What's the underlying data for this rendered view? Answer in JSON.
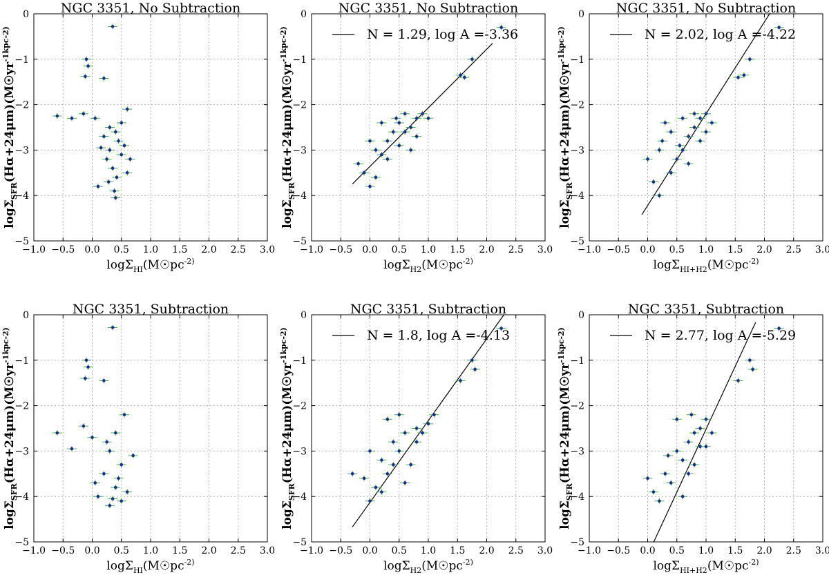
{
  "figure": {
    "rows": 2,
    "cols": 3
  },
  "chart_data": [
    {
      "type": "scatter",
      "title": "NGC 3351, No Subtraction",
      "xlabel": "logΣ_HI(M☉pc^-2)",
      "ylabel": "logΣ_SFR(Hα+24μm)(M☉yr^-1kpc^-2)",
      "xlim": [
        -1.0,
        3.0
      ],
      "ylim": [
        -5,
        0
      ],
      "x_ticks": [
        "−1.0",
        "−0.5",
        "0.0",
        "0.5",
        "1.0",
        "1.5",
        "2.0",
        "2.5",
        "3.0"
      ],
      "y_ticks": [
        "−5",
        "−4",
        "−3",
        "−2",
        "−1",
        "0"
      ],
      "grid": true,
      "legend": null,
      "fit": null,
      "points": [
        [
          0.35,
          -0.28
        ],
        [
          -0.1,
          -1.0
        ],
        [
          -0.07,
          -1.15
        ],
        [
          -0.12,
          -1.38
        ],
        [
          0.2,
          -1.42
        ],
        [
          -0.6,
          -2.25
        ],
        [
          -0.35,
          -2.3
        ],
        [
          -0.15,
          -2.2
        ],
        [
          0.6,
          -2.1
        ],
        [
          0.05,
          -2.3
        ],
        [
          0.3,
          -2.5
        ],
        [
          0.4,
          -2.6
        ],
        [
          0.45,
          -2.8
        ],
        [
          0.3,
          -3.0
        ],
        [
          0.5,
          -3.1
        ],
        [
          0.25,
          -3.2
        ],
        [
          0.55,
          -2.9
        ],
        [
          0.35,
          -3.4
        ],
        [
          0.42,
          -3.6
        ],
        [
          0.38,
          -3.9
        ],
        [
          0.4,
          -4.05
        ],
        [
          0.1,
          -3.8
        ],
        [
          0.65,
          -3.2
        ],
        [
          0.2,
          -2.7
        ],
        [
          0.5,
          -2.4
        ],
        [
          0.15,
          -2.95
        ],
        [
          0.6,
          -3.5
        ],
        [
          0.28,
          -3.7
        ]
      ]
    },
    {
      "type": "scatter",
      "title": "NGC 3351, No Subtraction",
      "xlabel": "logΣ_H2(M☉pc^-2)",
      "ylabel": "logΣ_SFR(Hα+24μm)(M☉yr^-1kpc^-2)",
      "xlim": [
        -1.0,
        3.0
      ],
      "ylim": [
        -5,
        0
      ],
      "x_ticks": [
        "−1.0",
        "−0.5",
        "0.0",
        "0.5",
        "1.0",
        "1.5",
        "2.0",
        "2.5",
        "3.0"
      ],
      "y_ticks": [
        "−5",
        "−4",
        "−3",
        "−2",
        "−1",
        "0"
      ],
      "grid": true,
      "legend": "N = 1.29, log A =-3.36",
      "fit": {
        "N": 1.29,
        "logA": -3.36,
        "x_range": [
          -0.3,
          2.1
        ]
      },
      "points": [
        [
          2.25,
          -0.3
        ],
        [
          1.75,
          -1.0
        ],
        [
          1.55,
          -1.35
        ],
        [
          1.62,
          -1.4
        ],
        [
          -0.2,
          -3.3
        ],
        [
          -0.1,
          -3.5
        ],
        [
          0.0,
          -3.8
        ],
        [
          0.1,
          -3.6
        ],
        [
          0.2,
          -3.1
        ],
        [
          0.3,
          -2.8
        ],
        [
          0.4,
          -2.6
        ],
        [
          0.5,
          -2.4
        ],
        [
          0.6,
          -2.2
        ],
        [
          0.7,
          -2.5
        ],
        [
          0.8,
          -2.3
        ],
        [
          0.9,
          -2.2
        ],
        [
          1.0,
          -2.3
        ],
        [
          0.2,
          -2.4
        ],
        [
          0.0,
          -2.8
        ],
        [
          0.5,
          -2.9
        ],
        [
          0.7,
          -3.0
        ],
        [
          0.3,
          -3.2
        ],
        [
          0.8,
          -2.7
        ],
        [
          0.6,
          -2.6
        ],
        [
          0.1,
          -3.0
        ],
        [
          0.45,
          -2.3
        ]
      ]
    },
    {
      "type": "scatter",
      "title": "NGC 3351, No Subtraction",
      "xlabel": "logΣ_HI+H2(M☉pc^-2)",
      "ylabel": "logΣ_SFR(Hα+24μm)(M☉yr^-1kpc^-2)",
      "xlim": [
        -1.0,
        3.0
      ],
      "ylim": [
        -5,
        0
      ],
      "x_ticks": [
        "−1.0",
        "−0.5",
        "0.0",
        "0.5",
        "1.0",
        "1.5",
        "2.0",
        "2.5",
        "3.0"
      ],
      "y_ticks": [
        "−5",
        "−4",
        "−3",
        "−2",
        "−1",
        "0"
      ],
      "grid": true,
      "legend": "N = 2.02, log A =-4.22",
      "fit": {
        "N": 2.02,
        "logA": -4.22,
        "x_range": [
          -0.1,
          2.1
        ]
      },
      "points": [
        [
          2.25,
          -0.3
        ],
        [
          1.75,
          -1.0
        ],
        [
          1.55,
          -1.4
        ],
        [
          1.65,
          -1.35
        ],
        [
          0.0,
          -3.2
        ],
        [
          0.2,
          -3.0
        ],
        [
          0.1,
          -3.7
        ],
        [
          0.2,
          -4.0
        ],
        [
          0.4,
          -3.5
        ],
        [
          0.5,
          -3.2
        ],
        [
          0.6,
          -3.0
        ],
        [
          0.7,
          -2.7
        ],
        [
          0.8,
          -2.5
        ],
        [
          0.9,
          -2.3
        ],
        [
          1.0,
          -2.2
        ],
        [
          1.1,
          -2.4
        ],
        [
          0.6,
          -2.3
        ],
        [
          0.4,
          -2.6
        ],
        [
          0.3,
          -2.4
        ],
        [
          0.7,
          -3.3
        ],
        [
          0.9,
          -2.8
        ],
        [
          1.0,
          -2.6
        ],
        [
          0.55,
          -2.9
        ],
        [
          0.8,
          -2.2
        ],
        [
          0.25,
          -2.8
        ]
      ]
    },
    {
      "type": "scatter",
      "title": "NGC 3351, Subtraction",
      "xlabel": "logΣ_HI(M☉pc^-2)",
      "ylabel": "logΣ_SFR(Hα+24μm)(M☉yr^-1kpc^-2)",
      "xlim": [
        -1.0,
        3.0
      ],
      "ylim": [
        -5,
        0
      ],
      "x_ticks": [
        "−1.0",
        "−0.5",
        "0.0",
        "0.5",
        "1.0",
        "1.5",
        "2.0",
        "2.5",
        "3.0"
      ],
      "y_ticks": [
        "−5",
        "−4",
        "−3",
        "−2",
        "−1",
        "0"
      ],
      "grid": true,
      "legend": null,
      "fit": null,
      "points": [
        [
          0.35,
          -0.28
        ],
        [
          -0.1,
          -1.0
        ],
        [
          -0.07,
          -1.15
        ],
        [
          -0.12,
          -1.4
        ],
        [
          0.2,
          -1.45
        ],
        [
          -0.6,
          -2.6
        ],
        [
          -0.35,
          -2.95
        ],
        [
          -0.15,
          -2.45
        ],
        [
          0.55,
          -2.2
        ],
        [
          0.0,
          -2.7
        ],
        [
          0.3,
          -3.0
        ],
        [
          0.4,
          -2.6
        ],
        [
          0.5,
          -3.3
        ],
        [
          0.2,
          -3.5
        ],
        [
          0.4,
          -3.8
        ],
        [
          0.1,
          -4.0
        ],
        [
          0.5,
          -4.1
        ],
        [
          0.3,
          -4.2
        ],
        [
          0.6,
          -3.9
        ],
        [
          0.45,
          -3.6
        ],
        [
          0.25,
          -2.8
        ],
        [
          0.7,
          -3.1
        ],
        [
          0.05,
          -3.7
        ],
        [
          0.35,
          -4.05
        ]
      ]
    },
    {
      "type": "scatter",
      "title": "NGC 3351, Subtraction",
      "xlabel": "logΣ_H2(M☉pc^-2)",
      "ylabel": "logΣ_SFR(Hα+24μm)(M☉yr^-1kpc^-2)",
      "xlim": [
        -1.0,
        3.0
      ],
      "ylim": [
        -5,
        0
      ],
      "x_ticks": [
        "−1.0",
        "−0.5",
        "0.0",
        "0.5",
        "1.0",
        "1.5",
        "2.0",
        "2.5",
        "3.0"
      ],
      "y_ticks": [
        "−5",
        "−4",
        "−3",
        "−2",
        "−1",
        "0"
      ],
      "grid": true,
      "legend": "N = 1.8, log A =-4.13",
      "fit": {
        "N": 1.8,
        "logA": -4.13,
        "x_range": [
          -0.3,
          2.3
        ]
      },
      "points": [
        [
          2.25,
          -0.3
        ],
        [
          1.75,
          -1.0
        ],
        [
          1.8,
          -1.2
        ],
        [
          1.55,
          -1.45
        ],
        [
          -0.3,
          -3.5
        ],
        [
          -0.1,
          -3.6
        ],
        [
          0.0,
          -4.1
        ],
        [
          0.1,
          -3.8
        ],
        [
          0.2,
          -3.2
        ],
        [
          0.3,
          -3.5
        ],
        [
          0.4,
          -2.8
        ],
        [
          0.5,
          -3.0
        ],
        [
          0.6,
          -2.6
        ],
        [
          0.7,
          -3.3
        ],
        [
          0.8,
          -2.8
        ],
        [
          0.9,
          -2.6
        ],
        [
          1.0,
          -2.4
        ],
        [
          1.1,
          -2.2
        ],
        [
          0.3,
          -2.3
        ],
        [
          0.5,
          -2.2
        ],
        [
          0.2,
          -3.9
        ],
        [
          0.6,
          -3.7
        ],
        [
          0.4,
          -3.3
        ],
        [
          0.8,
          -2.5
        ],
        [
          0.0,
          -3.0
        ]
      ]
    },
    {
      "type": "scatter",
      "title": "NGC 3351, Subtraction",
      "xlabel": "logΣ_HI+H2(M☉pc^-2)",
      "ylabel": "logΣ_SFR(Hα+24μm)(M☉yr^-1kpc^-2)",
      "xlim": [
        -1.0,
        3.0
      ],
      "ylim": [
        -5,
        0
      ],
      "x_ticks": [
        "−1.0",
        "−0.5",
        "0.0",
        "0.5",
        "1.0",
        "1.5",
        "2.0",
        "2.5",
        "3.0"
      ],
      "y_ticks": [
        "−5",
        "−4",
        "−3",
        "−2",
        "−1",
        "0"
      ],
      "grid": true,
      "legend": "N = 2.77, log A =-5.29",
      "fit": {
        "N": 2.77,
        "logA": -5.29,
        "x_range": [
          0.1,
          1.85
        ]
      },
      "points": [
        [
          2.25,
          -0.3
        ],
        [
          1.75,
          -1.0
        ],
        [
          1.8,
          -1.2
        ],
        [
          1.55,
          -1.45
        ],
        [
          0.0,
          -3.6
        ],
        [
          0.1,
          -3.9
        ],
        [
          0.2,
          -4.1
        ],
        [
          0.3,
          -3.5
        ],
        [
          0.4,
          -3.7
        ],
        [
          0.5,
          -3.0
        ],
        [
          0.6,
          -3.2
        ],
        [
          0.7,
          -2.8
        ],
        [
          0.8,
          -2.6
        ],
        [
          0.9,
          -2.5
        ],
        [
          1.0,
          -2.3
        ],
        [
          1.1,
          -2.6
        ],
        [
          0.5,
          -2.3
        ],
        [
          0.7,
          -3.5
        ],
        [
          0.6,
          -4.0
        ],
        [
          0.8,
          -3.3
        ],
        [
          0.9,
          -2.9
        ],
        [
          1.0,
          -2.9
        ],
        [
          0.35,
          -3.1
        ],
        [
          0.75,
          -2.2
        ]
      ]
    }
  ]
}
